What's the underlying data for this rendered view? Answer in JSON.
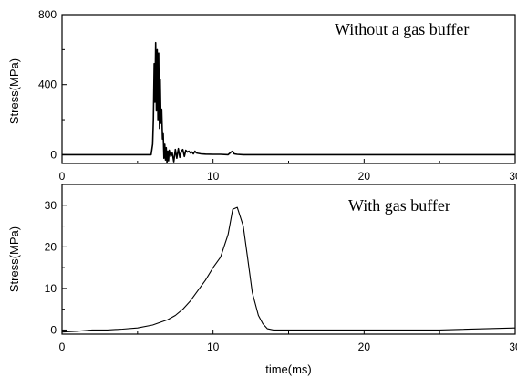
{
  "chart_data": [
    {
      "type": "line",
      "annotation": "Without a gas buffer",
      "ylabel": "Stress(MPa)",
      "xlabel": "",
      "xlim": [
        0,
        30
      ],
      "ylim": [
        -50,
        800
      ],
      "xticks": [
        0,
        10,
        20,
        30
      ],
      "yticks": [
        0,
        400,
        800
      ],
      "series": [
        {
          "x": [
            0,
            5.9,
            6.0,
            6.05,
            6.1,
            6.15,
            6.2,
            6.25,
            6.3,
            6.35,
            6.4,
            6.45,
            6.5,
            6.55,
            6.6,
            6.65,
            6.7,
            6.75,
            6.8,
            6.85,
            6.9,
            6.95,
            7.0,
            7.05,
            7.1,
            7.2,
            7.3,
            7.4,
            7.5,
            7.6,
            7.7,
            7.8,
            7.9,
            8.0,
            8.1,
            8.2,
            8.3,
            8.4,
            8.5,
            8.6,
            8.7,
            8.8,
            8.9,
            9.0,
            9.2,
            9.5,
            10.0,
            10.5,
            11.0,
            11.2,
            11.3,
            11.4,
            11.6,
            12.0,
            15.0,
            20.0,
            25.0,
            30.0
          ],
          "y": [
            0,
            0,
            60,
            200,
            520,
            300,
            640,
            250,
            600,
            200,
            580,
            150,
            430,
            180,
            260,
            90,
            120,
            -20,
            60,
            -30,
            40,
            -45,
            20,
            -35,
            25,
            -10,
            10,
            -40,
            30,
            -20,
            35,
            -15,
            20,
            30,
            -10,
            25,
            15,
            20,
            10,
            15,
            5,
            20,
            10,
            8,
            5,
            3,
            2,
            2,
            0,
            15,
            20,
            5,
            2,
            0,
            0,
            0,
            0,
            0
          ]
        }
      ]
    },
    {
      "type": "line",
      "annotation": "With gas buffer",
      "ylabel": "Stress(MPa)",
      "xlabel": "time(ms)",
      "xlim": [
        0,
        30
      ],
      "ylim": [
        -1,
        35
      ],
      "xticks": [
        0,
        10,
        20,
        30
      ],
      "yticks": [
        0,
        10,
        20,
        30
      ],
      "series": [
        {
          "x": [
            0,
            1,
            2,
            3,
            4,
            5,
            6,
            7,
            7.5,
            8,
            8.5,
            9,
            9.5,
            10,
            10.5,
            11,
            11.3,
            11.6,
            12,
            12.3,
            12.6,
            13.0,
            13.3,
            13.6,
            14,
            15,
            20,
            25,
            30
          ],
          "y": [
            -0.5,
            -0.3,
            0,
            0,
            0.2,
            0.5,
            1.2,
            2.5,
            3.5,
            5,
            7,
            9.5,
            12,
            15,
            17.5,
            23,
            29,
            29.5,
            25,
            17,
            9,
            3.5,
            1.5,
            0.3,
            0,
            0,
            0,
            0,
            0.5
          ]
        }
      ]
    }
  ]
}
